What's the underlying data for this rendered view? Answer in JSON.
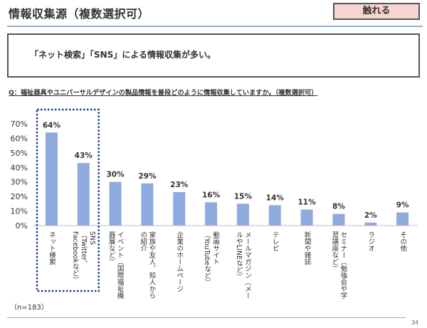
{
  "header": {
    "title": "情報収集源（複数選択可）",
    "tag": "触れる"
  },
  "summary": "「ネット検索」「SNS」による情報収集が多い。",
  "question": "Q：福祉器具やユニバーサルデザインの製品情報を普段どのように情報収集していますか。（複数選択可）",
  "note": "（n=183）",
  "page_number": "34",
  "colors": {
    "bar": "#8faadc",
    "accent": "#1f3e8c",
    "rule": "#8db0d6",
    "tag_bg": "#f9d5d1"
  },
  "chart_data": {
    "type": "bar",
    "title": "",
    "xlabel": "",
    "ylabel": "",
    "ylim": [
      0,
      70
    ],
    "yticks": [
      0,
      10,
      20,
      30,
      40,
      50,
      60,
      70
    ],
    "ytick_labels": [
      "0%",
      "10%",
      "20%",
      "30%",
      "40%",
      "50%",
      "60%",
      "70%"
    ],
    "grid": false,
    "categories": [
      [
        "ネット検索"
      ],
      [
        "SNS",
        "（Twitter、",
        "Facebookなど）"
      ],
      [
        "イベント（国際福祉機",
        "器展など）"
      ],
      [
        "家族や友人、知人から",
        "の紹介"
      ],
      [
        "企業のホームページ"
      ],
      [
        "動画サイト",
        "（YouTubeなど）"
      ],
      [
        "メールマガジン（メー",
        "ルやLINEなど）"
      ],
      [
        "テレビ"
      ],
      [
        "新聞や雑誌"
      ],
      [
        "セミナー（勉強会や学",
        "習講座など）"
      ],
      [
        "ラジオ"
      ],
      [
        "その他"
      ]
    ],
    "values": [
      64,
      43,
      30,
      29,
      23,
      16,
      15,
      14,
      11,
      8,
      2,
      9
    ],
    "value_labels": [
      "64%",
      "43%",
      "30%",
      "29%",
      "23%",
      "16%",
      "15%",
      "14%",
      "11%",
      "8%",
      "2%",
      "9%"
    ],
    "highlight": {
      "categories": [
        "ネット検索",
        "SNS"
      ],
      "style": "dotted-box"
    }
  }
}
